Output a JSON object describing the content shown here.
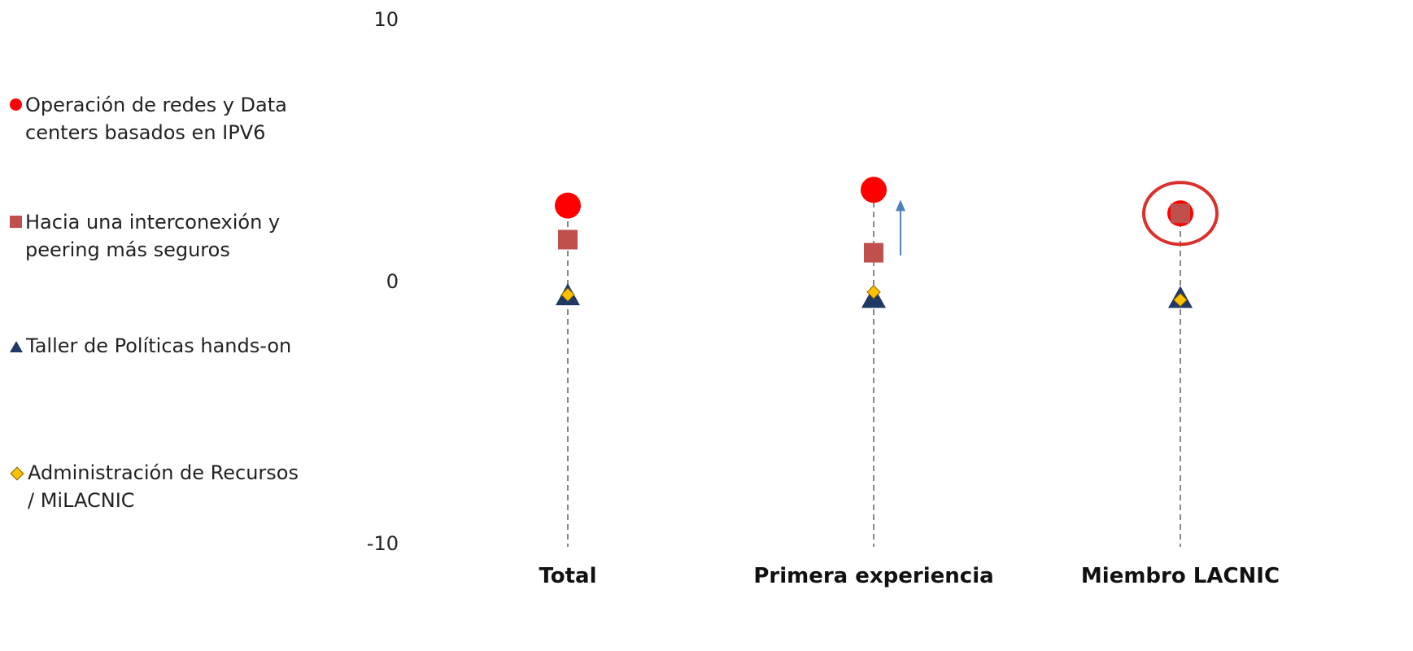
{
  "chart_data": {
    "type": "scatter",
    "title": "",
    "xlabel": "",
    "ylabel": "",
    "ylim": [
      -10,
      10
    ],
    "y_ticks": [
      "10",
      "0",
      "-10"
    ],
    "categories": [
      "Total",
      "Primera experiencia",
      "Miembro LACNIC"
    ],
    "series": [
      {
        "name": "Operación de redes y Data centers basados en IPV6",
        "marker": "circle",
        "color": "#ff0000",
        "values": [
          2.9,
          3.5,
          2.6
        ]
      },
      {
        "name": "Hacia una interconexión y peering más seguros",
        "marker": "square",
        "color": "#c0504d",
        "values": [
          1.6,
          1.1,
          2.6
        ]
      },
      {
        "name": "Taller de Políticas hands-on",
        "marker": "triangle",
        "color": "#1f3864",
        "values": [
          -0.5,
          -0.6,
          -0.6
        ]
      },
      {
        "name": "Administración de Recursos / MiLACNIC",
        "marker": "diamond",
        "color": "#ffc000",
        "values": [
          -0.5,
          -0.4,
          -0.7
        ]
      }
    ],
    "annotations": [
      {
        "type": "arrow-up",
        "category": "Primera experiencia",
        "color": "#4f81bd",
        "from": 1.0,
        "to": 3.0
      },
      {
        "type": "ellipse-highlight",
        "category": "Miembro LACNIC",
        "color": "#d9302b",
        "center": 2.6
      }
    ],
    "legend_position": "left",
    "grid": false
  },
  "legend": {
    "items": [
      {
        "label_line1": "Operación de redes y Data",
        "label_line2": "centers basados en IPV6"
      },
      {
        "label_line1": "Hacia una interconexión y",
        "label_line2": "peering más seguros"
      },
      {
        "label_line1": "Taller de Políticas hands-on",
        "label_line2": ""
      },
      {
        "label_line1": "Administración de Recursos",
        "label_line2": "/ MiLACNIC"
      }
    ]
  }
}
